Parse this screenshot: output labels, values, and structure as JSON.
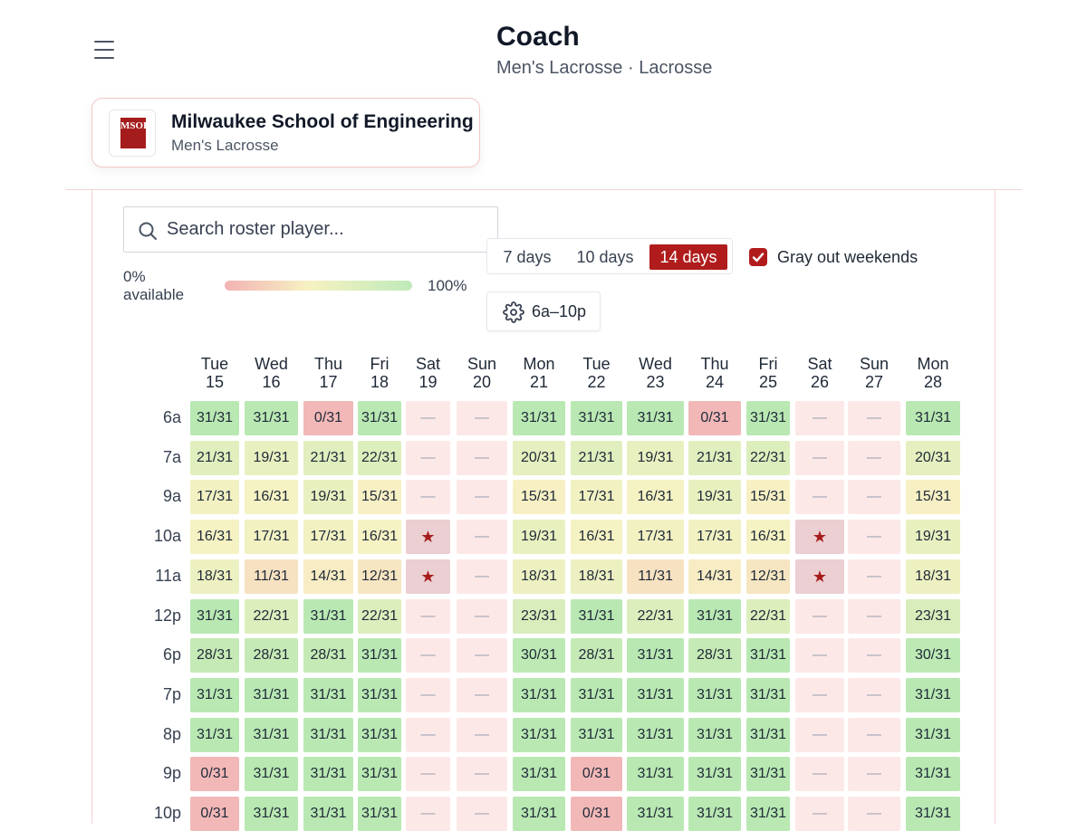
{
  "header": {
    "title": "Coach",
    "subtitle": "Men's Lacrosse · Lacrosse"
  },
  "team": {
    "logo_text": "MSOE",
    "name": "Milwaukee School of Engineering",
    "sport": "Men's Lacrosse"
  },
  "search": {
    "placeholder": "Search roster player..."
  },
  "legend": {
    "min_label": "0%\navailable",
    "max_label": "100%"
  },
  "range": {
    "options": [
      "7 days",
      "10 days",
      "14 days"
    ],
    "selected": "14 days"
  },
  "weekend": {
    "label": "Gray out weekends",
    "checked": true
  },
  "hours": {
    "label": "6a–10p"
  },
  "colors": {
    "accent": "#b01c1c",
    "low": "#f2b8b8",
    "mid": "#f7f2c4",
    "high": "#b9e8b3",
    "weekend": "#fde8e8",
    "weekend_star": "#ebcfd2"
  },
  "grid": {
    "days": [
      {
        "dow": "Tue",
        "date": "15"
      },
      {
        "dow": "Wed",
        "date": "16"
      },
      {
        "dow": "Thu",
        "date": "17"
      },
      {
        "dow": "Fri",
        "date": "18"
      },
      {
        "dow": "Sat",
        "date": "19"
      },
      {
        "dow": "Sun",
        "date": "20"
      },
      {
        "dow": "Mon",
        "date": "21"
      },
      {
        "dow": "Tue",
        "date": "22"
      },
      {
        "dow": "Wed",
        "date": "23"
      },
      {
        "dow": "Thu",
        "date": "24"
      },
      {
        "dow": "Fri",
        "date": "25"
      },
      {
        "dow": "Sat",
        "date": "26"
      },
      {
        "dow": "Sun",
        "date": "27"
      },
      {
        "dow": "Mon",
        "date": "28"
      }
    ],
    "rows": [
      {
        "time": "6a",
        "cells": [
          "31/31",
          "31/31",
          "0/31",
          "31/31",
          "—",
          "—",
          "31/31",
          "31/31",
          "31/31",
          "0/31",
          "31/31",
          "—",
          "—",
          "31/31"
        ]
      },
      {
        "time": "7a",
        "cells": [
          "21/31",
          "19/31",
          "21/31",
          "22/31",
          "—",
          "—",
          "20/31",
          "21/31",
          "19/31",
          "21/31",
          "22/31",
          "—",
          "—",
          "20/31"
        ]
      },
      {
        "time": "9a",
        "cells": [
          "17/31",
          "16/31",
          "19/31",
          "15/31",
          "—",
          "—",
          "15/31",
          "17/31",
          "16/31",
          "19/31",
          "15/31",
          "—",
          "—",
          "15/31"
        ]
      },
      {
        "time": "10a",
        "cells": [
          "16/31",
          "17/31",
          "17/31",
          "16/31",
          "★",
          "—",
          "19/31",
          "16/31",
          "17/31",
          "17/31",
          "16/31",
          "★",
          "—",
          "19/31"
        ]
      },
      {
        "time": "11a",
        "cells": [
          "18/31",
          "11/31",
          "14/31",
          "12/31",
          "★",
          "—",
          "18/31",
          "18/31",
          "11/31",
          "14/31",
          "12/31",
          "★",
          "—",
          "18/31"
        ]
      },
      {
        "time": "12p",
        "cells": [
          "31/31",
          "22/31",
          "31/31",
          "22/31",
          "—",
          "—",
          "23/31",
          "31/31",
          "22/31",
          "31/31",
          "22/31",
          "—",
          "—",
          "23/31"
        ]
      },
      {
        "time": "6p",
        "cells": [
          "28/31",
          "28/31",
          "28/31",
          "31/31",
          "—",
          "—",
          "30/31",
          "28/31",
          "31/31",
          "28/31",
          "31/31",
          "—",
          "—",
          "30/31"
        ]
      },
      {
        "time": "7p",
        "cells": [
          "31/31",
          "31/31",
          "31/31",
          "31/31",
          "—",
          "—",
          "31/31",
          "31/31",
          "31/31",
          "31/31",
          "31/31",
          "—",
          "—",
          "31/31"
        ]
      },
      {
        "time": "8p",
        "cells": [
          "31/31",
          "31/31",
          "31/31",
          "31/31",
          "—",
          "—",
          "31/31",
          "31/31",
          "31/31",
          "31/31",
          "31/31",
          "—",
          "—",
          "31/31"
        ]
      },
      {
        "time": "9p",
        "cells": [
          "0/31",
          "31/31",
          "31/31",
          "31/31",
          "—",
          "—",
          "31/31",
          "0/31",
          "31/31",
          "31/31",
          "31/31",
          "—",
          "—",
          "31/31"
        ]
      },
      {
        "time": "10p",
        "cells": [
          "0/31",
          "31/31",
          "31/31",
          "31/31",
          "—",
          "—",
          "31/31",
          "0/31",
          "31/31",
          "31/31",
          "31/31",
          "—",
          "—",
          "31/31"
        ]
      }
    ]
  }
}
